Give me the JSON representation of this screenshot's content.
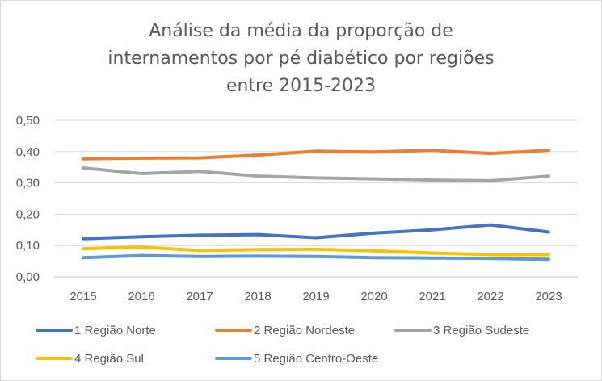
{
  "chart_data": {
    "type": "line",
    "title_lines": [
      "Análise da média da proporção de",
      "internamentos por pé diabético por regiões",
      "entre 2015-2023"
    ],
    "categories": [
      "2015",
      "2016",
      "2017",
      "2018",
      "2019",
      "2020",
      "2021",
      "2022",
      "2023"
    ],
    "y_ticks": [
      "0,00",
      "0,10",
      "0,20",
      "0,30",
      "0,40",
      "0,50"
    ],
    "ylim": [
      0,
      0.5
    ],
    "grid": true,
    "legend_position": "bottom",
    "series": [
      {
        "name": "1 Região Norte",
        "color": "#4472C4",
        "values": [
          0.122,
          0.128,
          0.133,
          0.135,
          0.125,
          0.14,
          0.15,
          0.166,
          0.143
        ]
      },
      {
        "name": "2 Região Nordeste",
        "color": "#ED7D31",
        "values": [
          0.377,
          0.379,
          0.38,
          0.389,
          0.401,
          0.399,
          0.404,
          0.394,
          0.404
        ]
      },
      {
        "name": "3 Região Sudeste",
        "color": "#A5A5A5",
        "values": [
          0.348,
          0.33,
          0.337,
          0.322,
          0.316,
          0.313,
          0.309,
          0.307,
          0.322
        ]
      },
      {
        "name": "4 Região Sul",
        "color": "#FFC000",
        "values": [
          0.09,
          0.095,
          0.084,
          0.087,
          0.088,
          0.083,
          0.076,
          0.071,
          0.071
        ]
      },
      {
        "name": "5 Região Centro-Oeste",
        "color": "#5B9BD5",
        "values": [
          0.061,
          0.068,
          0.065,
          0.066,
          0.065,
          0.061,
          0.06,
          0.059,
          0.056
        ]
      }
    ]
  }
}
